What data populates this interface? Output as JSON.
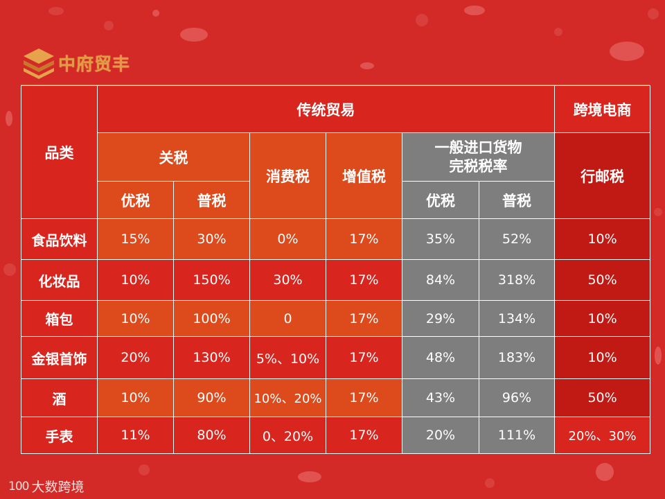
{
  "logo": {
    "text": "中府贸丰",
    "icon": "layered-s-logo-icon"
  },
  "table": {
    "category_header": "品类",
    "traditional_trade": "传统贸易",
    "cross_border": "跨境电商",
    "tariff": "关税",
    "consumption_tax": "消费税",
    "vat": "增值税",
    "general_import_rate": "一般进口货物完税税率",
    "postal_tax": "行邮税",
    "preferential": "优税",
    "ordinary": "普税",
    "rows": [
      {
        "category": "食品饮料",
        "tariff_pref": "15%",
        "tariff_ord": "30%",
        "consumption": "0%",
        "vat": "17%",
        "rate_pref": "35%",
        "rate_ord": "52%",
        "postal": "10%"
      },
      {
        "category": "化妆品",
        "tariff_pref": "10%",
        "tariff_ord": "150%",
        "consumption": "30%",
        "vat": "17%",
        "rate_pref": "84%",
        "rate_ord": "318%",
        "postal": "50%"
      },
      {
        "category": "箱包",
        "tariff_pref": "10%",
        "tariff_ord": "100%",
        "consumption": "0",
        "vat": "17%",
        "rate_pref": "29%",
        "rate_ord": "134%",
        "postal": "10%"
      },
      {
        "category": "金银首饰",
        "tariff_pref": "20%",
        "tariff_ord": "130%",
        "consumption": "5%、10%",
        "vat": "17%",
        "rate_pref": "48%",
        "rate_ord": "183%",
        "postal": "10%"
      },
      {
        "category": "酒",
        "tariff_pref": "10%",
        "tariff_ord": "90%",
        "consumption": "10%、20%",
        "vat": "17%",
        "rate_pref": "43%",
        "rate_ord": "96%",
        "postal": "50%"
      },
      {
        "category": "手表",
        "tariff_pref": "11%",
        "tariff_ord": "80%",
        "consumption": "0、20%",
        "vat": "17%",
        "rate_pref": "20%",
        "rate_ord": "111%",
        "postal": "20%、30%"
      }
    ]
  },
  "footer": {
    "mark": "100",
    "brand": "大数跨境"
  },
  "colors": {
    "background": "#d42a27",
    "traditional_header": "#d8261f",
    "orange": "#dd4b1c",
    "gray": "#7e7e7e",
    "postal": "#c11a14"
  }
}
